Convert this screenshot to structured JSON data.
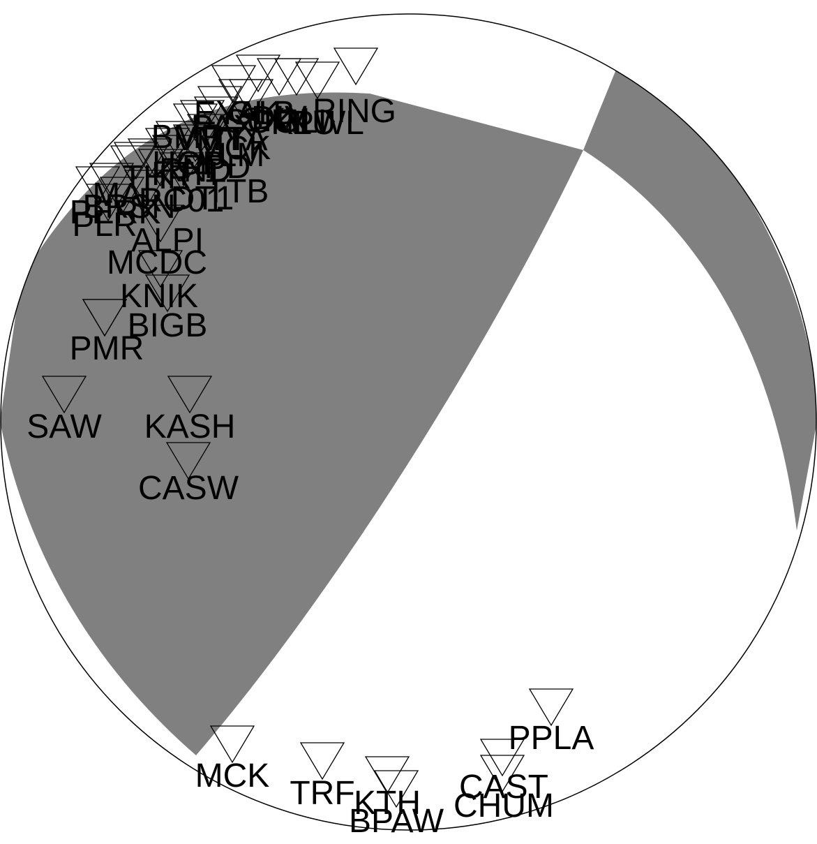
{
  "colors": {
    "compressional": "#808080",
    "dilatational": "#ffffff",
    "outline": "#000000"
  },
  "stations": [
    {
      "name": "RING",
      "symbol": "inverted-triangle"
    },
    {
      "name": "EYAK",
      "symbol": "inverted-triangle"
    },
    {
      "name": "GLB",
      "symbol": "inverted-triangle"
    },
    {
      "name": "DIV",
      "symbol": "inverted-triangle"
    },
    {
      "name": "SCM",
      "symbol": "inverted-triangle"
    },
    {
      "name": "PAX",
      "symbol": "inverted-triangle"
    },
    {
      "name": "GLI",
      "symbol": "inverted-triangle"
    },
    {
      "name": "KLU",
      "symbol": "inverted-triangle"
    },
    {
      "name": "PWL",
      "symbol": "inverted-triangle"
    },
    {
      "name": "SKN",
      "symbol": "inverted-triangle"
    },
    {
      "name": "BMR",
      "symbol": "inverted-triangle"
    },
    {
      "name": "VMT",
      "symbol": "inverted-triangle"
    },
    {
      "name": "TTA",
      "symbol": "inverted-triangle"
    },
    {
      "name": "VLM",
      "symbol": "inverted-triangle"
    },
    {
      "name": "MCK",
      "symbol": "inverted-triangle"
    },
    {
      "name": "HOP",
      "symbol": "inverted-triangle"
    },
    {
      "name": "RND",
      "symbol": "inverted-triangle"
    },
    {
      "name": "THR",
      "symbol": "inverted-triangle"
    },
    {
      "name": "PPD",
      "symbol": "inverted-triangle"
    },
    {
      "name": "KTH",
      "symbol": "inverted-triangle"
    },
    {
      "name": "DT1",
      "symbol": "inverted-triangle"
    },
    {
      "name": "TTB",
      "symbol": "inverted-triangle"
    },
    {
      "name": "MAI",
      "symbol": "inverted-triangle"
    },
    {
      "name": "BRSN",
      "symbol": "inverted-triangle"
    },
    {
      "name": "RC01",
      "symbol": "inverted-triangle"
    },
    {
      "name": "PERK",
      "symbol": "inverted-triangle"
    },
    {
      "name": "PLR",
      "symbol": "inverted-triangle"
    },
    {
      "name": "ALPI",
      "symbol": "inverted-triangle"
    },
    {
      "name": "MCDC",
      "symbol": "inverted-triangle"
    },
    {
      "name": "KNIK",
      "symbol": "inverted-triangle"
    },
    {
      "name": "BIGB",
      "symbol": "inverted-triangle"
    },
    {
      "name": "PMR",
      "symbol": "inverted-triangle"
    },
    {
      "name": "SAW",
      "symbol": "inverted-triangle"
    },
    {
      "name": "KASH",
      "symbol": "inverted-triangle"
    },
    {
      "name": "CASW",
      "symbol": "inverted-triangle"
    },
    {
      "name": "MCK",
      "symbol": "inverted-triangle"
    },
    {
      "name": "TRF",
      "symbol": "inverted-triangle"
    },
    {
      "name": "KTH",
      "symbol": "inverted-triangle"
    },
    {
      "name": "BPAW",
      "symbol": "inverted-triangle"
    },
    {
      "name": "CAST",
      "symbol": "inverted-triangle"
    },
    {
      "name": "CHUM",
      "symbol": "inverted-triangle"
    },
    {
      "name": "PPLA",
      "symbol": "inverted-triangle"
    }
  ]
}
